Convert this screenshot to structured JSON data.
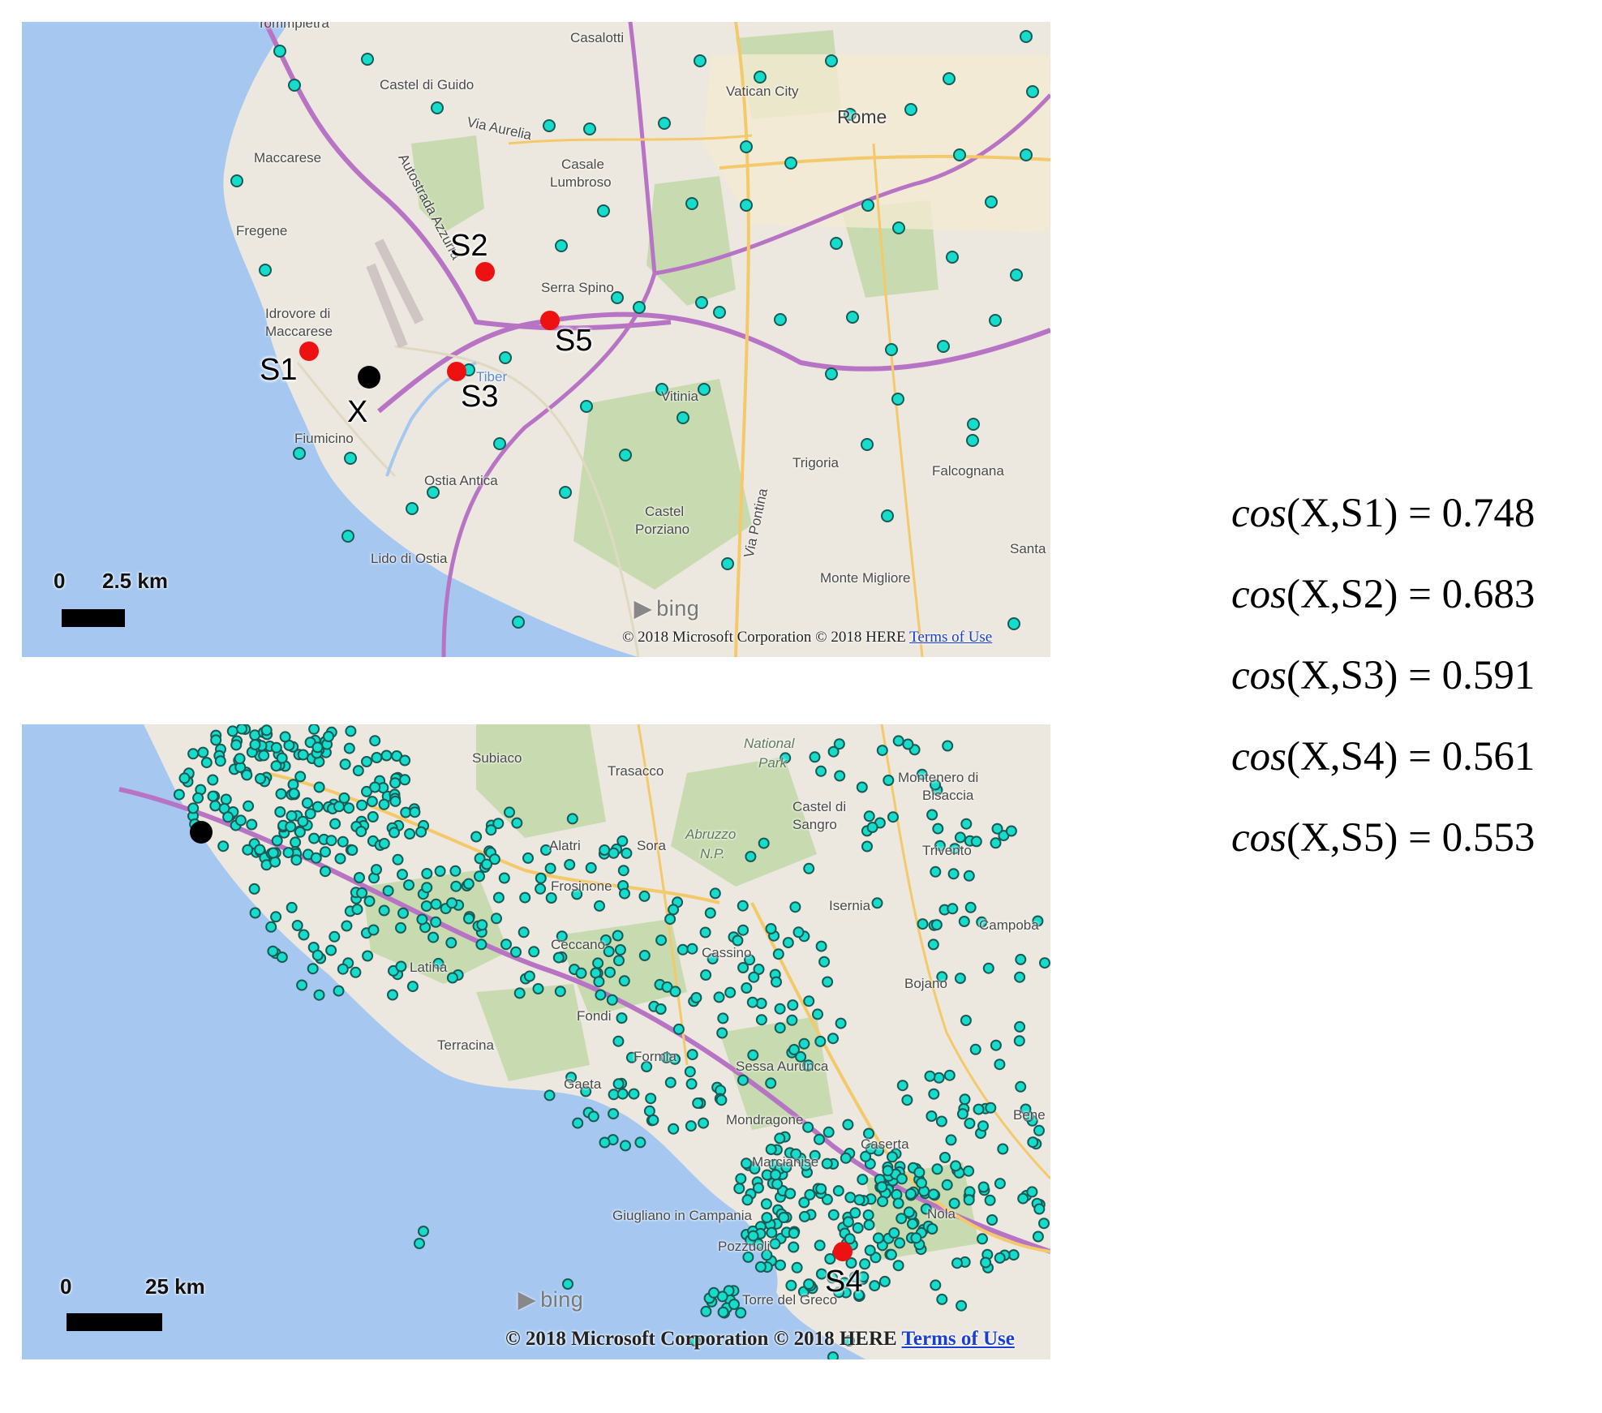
{
  "map_top": {
    "places": [
      {
        "id": "tommpietra",
        "text": "Tommpietra"
      },
      {
        "id": "casalotti",
        "text": "Casalotti"
      },
      {
        "id": "castel-di-guido",
        "text": "Castel di Guido"
      },
      {
        "id": "vatican",
        "text": "Vatican City"
      },
      {
        "id": "rome",
        "text": "Rome"
      },
      {
        "id": "via-aurelia",
        "text": "Via Aurelia"
      },
      {
        "id": "maccarese",
        "text": "Maccarese"
      },
      {
        "id": "casale",
        "text": "Casale"
      },
      {
        "id": "lumbroso",
        "text": "Lumbroso"
      },
      {
        "id": "fregene",
        "text": "Fregene"
      },
      {
        "id": "serra-spino",
        "text": "Serra Spino"
      },
      {
        "id": "idrovore",
        "text": "Idrovore di"
      },
      {
        "id": "maccarese2",
        "text": "Maccarese"
      },
      {
        "id": "tiber",
        "text": "Tiber"
      },
      {
        "id": "vitinia",
        "text": "Vitinia"
      },
      {
        "id": "fiumicino",
        "text": "Fiumicino"
      },
      {
        "id": "trigoria",
        "text": "Trigoria"
      },
      {
        "id": "falcognana",
        "text": "Falcognana"
      },
      {
        "id": "ostia-antica",
        "text": "Ostia Antica"
      },
      {
        "id": "castel",
        "text": "Castel"
      },
      {
        "id": "porziano",
        "text": "Porziano"
      },
      {
        "id": "santa",
        "text": "Santa"
      },
      {
        "id": "lido-di-ostia",
        "text": "Lido di Ostia"
      },
      {
        "id": "monte-migliore",
        "text": "Monte Migliore"
      },
      {
        "id": "via-pontina",
        "text": "Via Pontina"
      },
      {
        "id": "autostrada",
        "text": "Autostrada Azzurra"
      }
    ],
    "markers": [
      {
        "id": "S1",
        "label": "S1",
        "color": "#ee1111"
      },
      {
        "id": "S2",
        "label": "S2",
        "color": "#ee1111"
      },
      {
        "id": "S3",
        "label": "S3",
        "color": "#ee1111"
      },
      {
        "id": "S5",
        "label": "S5",
        "color": "#ee1111"
      },
      {
        "id": "X",
        "label": "X",
        "color": "#000000"
      }
    ],
    "scale": {
      "zero": "0",
      "distance": "2.5 km"
    },
    "brand": "bing",
    "copyright": "© 2018 Microsoft Corporation © 2018 HERE",
    "terms": "Terms of Use"
  },
  "map_bottom": {
    "places": [
      {
        "id": "subiaco",
        "text": "Subiaco"
      },
      {
        "id": "trasacco",
        "text": "Trasacco"
      },
      {
        "id": "national-park",
        "text": "National"
      },
      {
        "id": "park",
        "text": "Park"
      },
      {
        "id": "montenero",
        "text": "Montenero di"
      },
      {
        "id": "bisaccia",
        "text": "Bisaccia"
      },
      {
        "id": "castel-di-sangro",
        "text": "Castel di"
      },
      {
        "id": "sangro",
        "text": "Sangro"
      },
      {
        "id": "alatri",
        "text": "Alatri"
      },
      {
        "id": "sora",
        "text": "Sora"
      },
      {
        "id": "abruzzo",
        "text": "Abruzzo"
      },
      {
        "id": "np",
        "text": "N.P."
      },
      {
        "id": "trivento",
        "text": "Trivento"
      },
      {
        "id": "frosinone",
        "text": "Frosinone"
      },
      {
        "id": "isernia",
        "text": "Isernia"
      },
      {
        "id": "campobasso",
        "text": "Campoba"
      },
      {
        "id": "ceccano",
        "text": "Ceccano"
      },
      {
        "id": "cassino",
        "text": "Cassino"
      },
      {
        "id": "latina",
        "text": "Latina"
      },
      {
        "id": "bojano",
        "text": "Bojano"
      },
      {
        "id": "fondi",
        "text": "Fondi"
      },
      {
        "id": "terracina",
        "text": "Terracina"
      },
      {
        "id": "formia",
        "text": "Formia"
      },
      {
        "id": "sessa",
        "text": "Sessa Aurunca"
      },
      {
        "id": "gaeta",
        "text": "Gaeta"
      },
      {
        "id": "mondragone",
        "text": "Mondragone"
      },
      {
        "id": "caserta",
        "text": "Caserta"
      },
      {
        "id": "marcianise",
        "text": "Marcianise"
      },
      {
        "id": "giugliano",
        "text": "Giugliano in Campania"
      },
      {
        "id": "pozzuoli",
        "text": "Pozzuoli"
      },
      {
        "id": "torre",
        "text": "Torre del Greco"
      },
      {
        "id": "nola",
        "text": "Nola"
      },
      {
        "id": "bene",
        "text": "Bene"
      }
    ],
    "markers": [
      {
        "id": "S4",
        "label": "S4",
        "color": "#ee1111"
      },
      {
        "id": "X",
        "label": "",
        "color": "#000000"
      }
    ],
    "scale": {
      "zero": "0",
      "distance": "25 km"
    },
    "brand": "bing",
    "copyright": "© 2018 Microsoft Corporation © 2018 HERE",
    "terms": "Terms of Use"
  },
  "similarities": [
    {
      "fn": "cos",
      "args": "(X,S1) = 0.748"
    },
    {
      "fn": "cos",
      "args": "(X,S2) = 0.683"
    },
    {
      "fn": "cos",
      "args": "(X,S3) = 0.591"
    },
    {
      "fn": "cos",
      "args": "(X,S4) = 0.561"
    },
    {
      "fn": "cos",
      "args": "(X,S5) = 0.553"
    }
  ],
  "colors": {
    "sea": "#a6c8f0",
    "land": "#ece8df",
    "park": "#c8dbb0",
    "motorway": "#b874c4",
    "major_road": "#f3c96a",
    "station_fill": "#16dccb",
    "station_stroke": "#1a5a55"
  }
}
